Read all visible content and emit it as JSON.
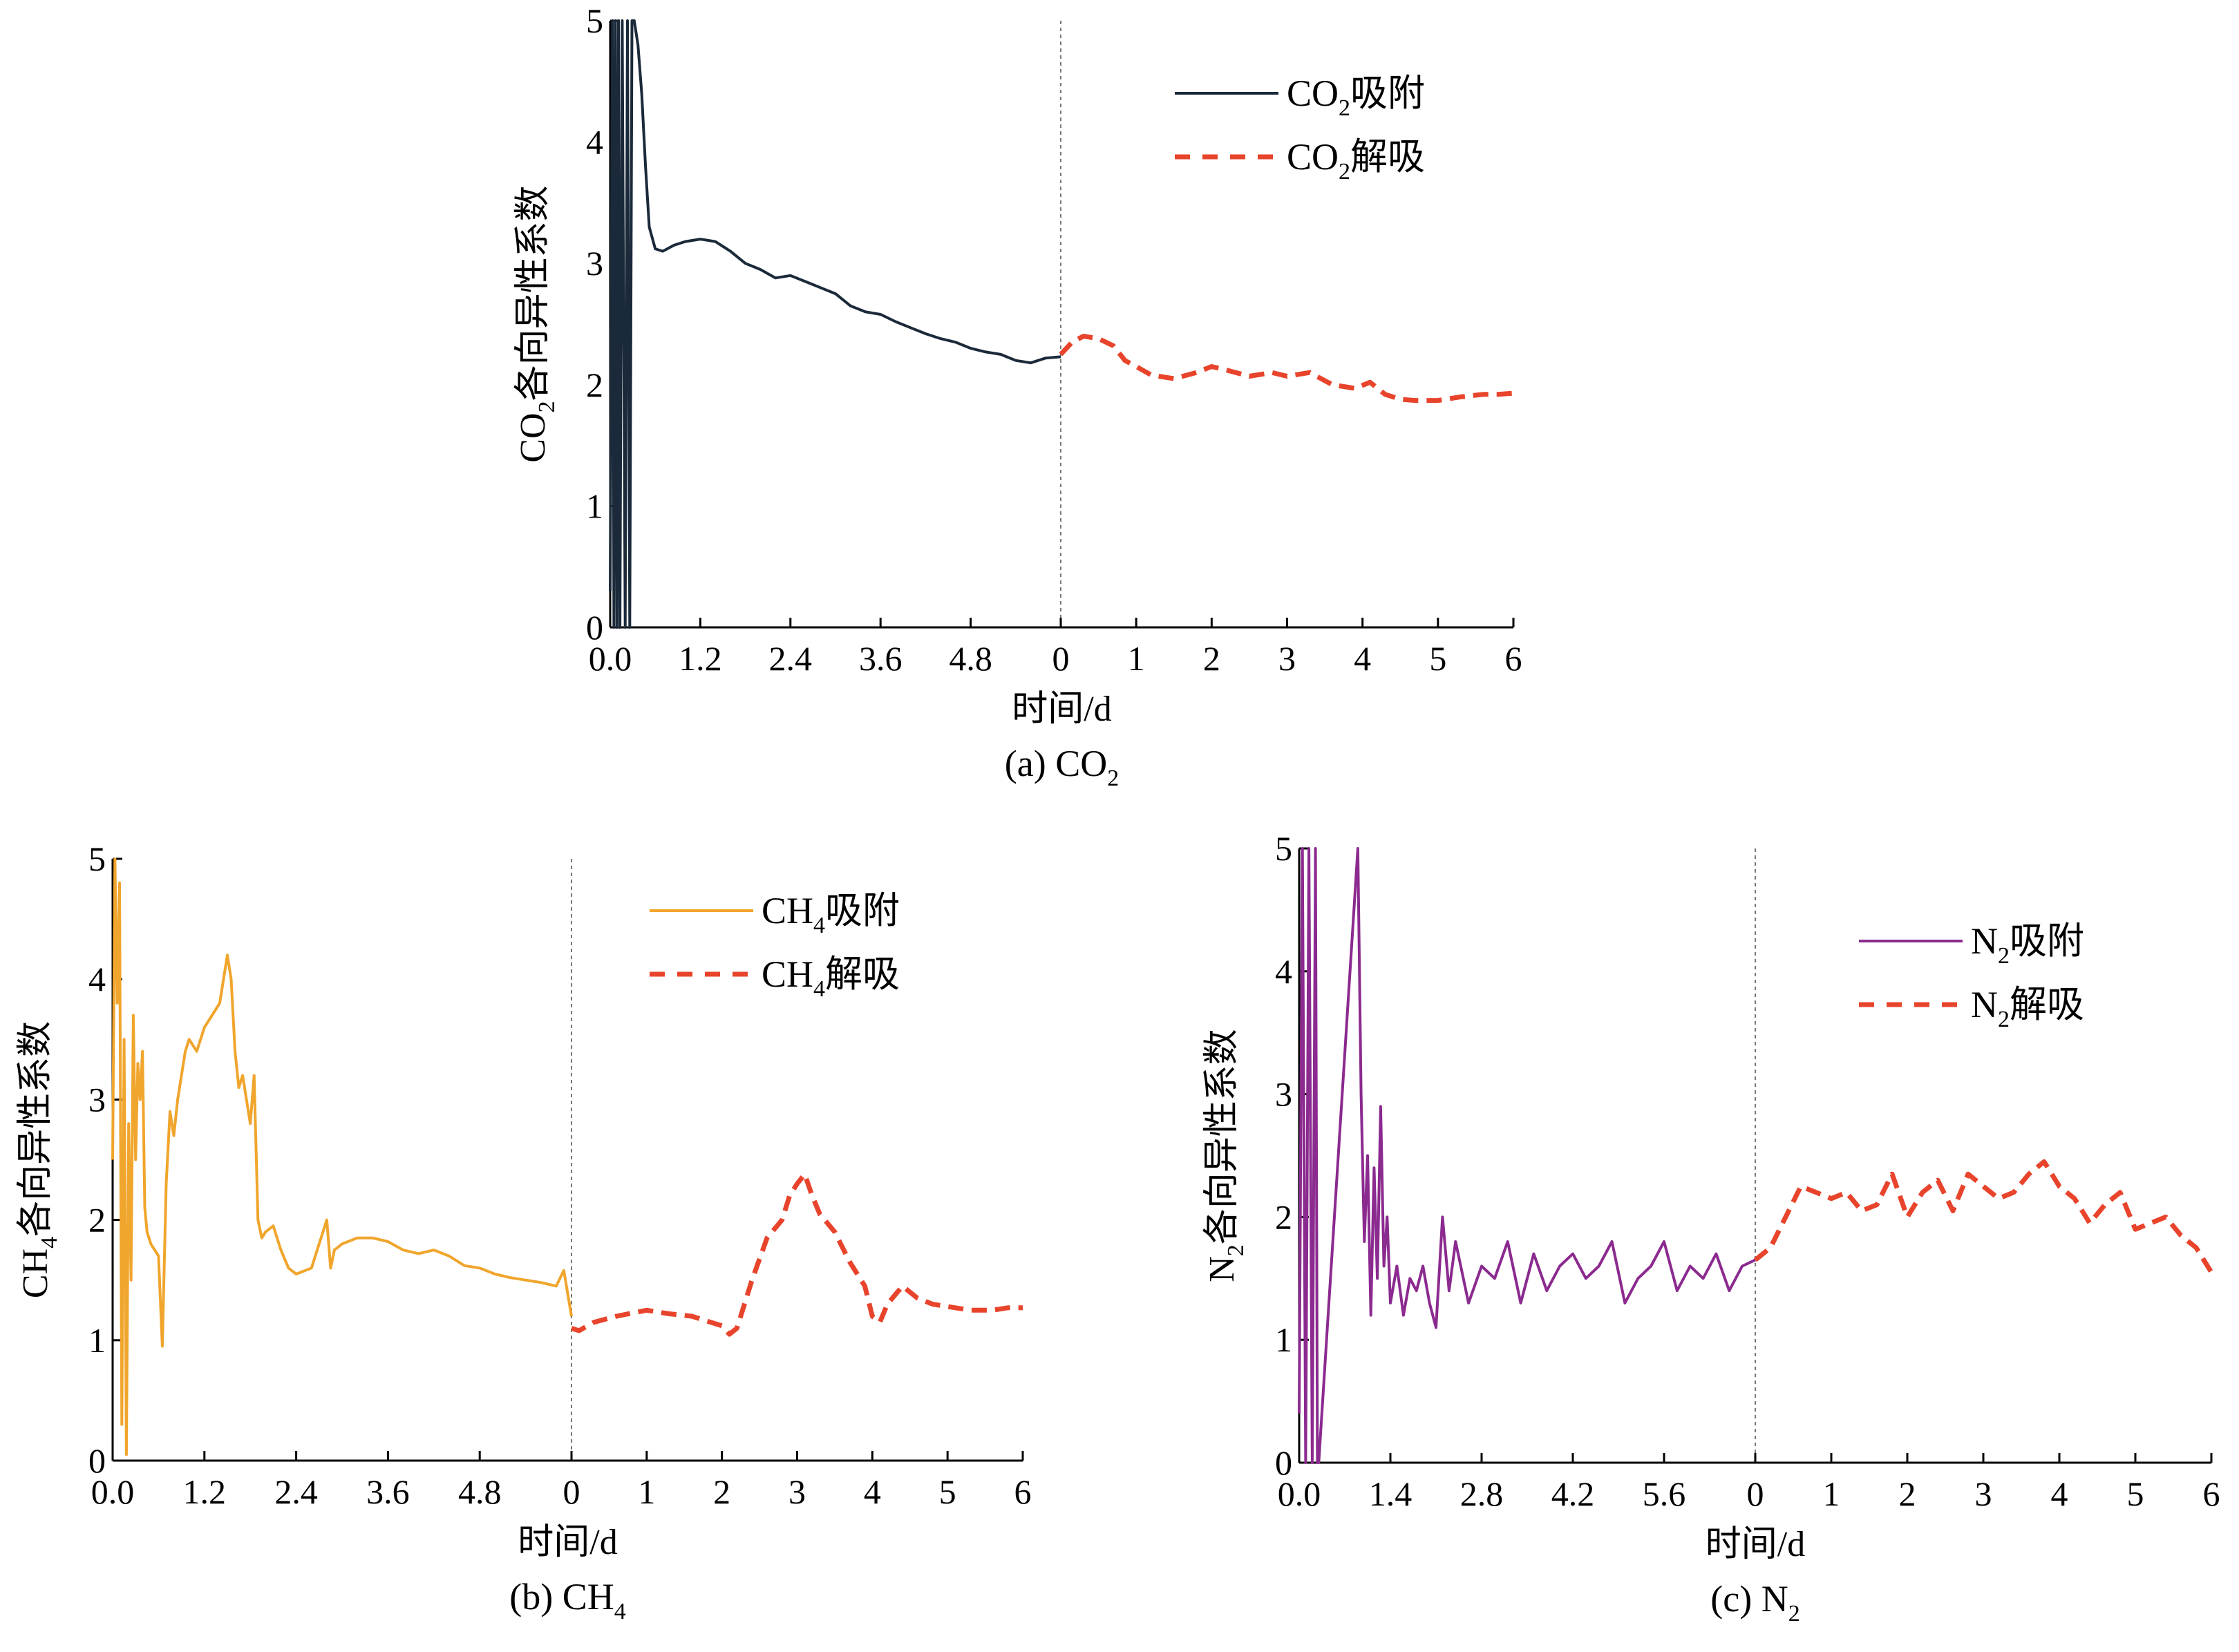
{
  "chart_data": [
    {
      "type": "line",
      "caption": "(a) CO",
      "caption_sub": "2",
      "ylabel": "CO",
      "ylabel_sub": "2",
      "ylabel_rest": "各向异性系数",
      "xlabel": "时间/d",
      "ylim": [
        0,
        5
      ],
      "yticks": [
        "0",
        "1",
        "2",
        "3",
        "4",
        "5"
      ],
      "adsorption_xlim": [
        0,
        6
      ],
      "adsorption_ticks": [
        "0.0",
        "1.2",
        "2.4",
        "3.6",
        "4.8"
      ],
      "adsorption_tick_values": [
        0,
        1.2,
        2.4,
        3.6,
        4.8
      ],
      "desorption_xlim": [
        0,
        6
      ],
      "desorption_ticks": [
        "0",
        "1",
        "2",
        "3",
        "4",
        "5",
        "6"
      ],
      "desorption_tick_values": [
        0,
        1,
        2,
        3,
        4,
        5,
        6
      ],
      "legend_placement": "top-right",
      "series": [
        {
          "name": "CO₂吸附",
          "legend_main": "CO",
          "legend_sub": "2",
          "legend_rest": "吸附",
          "phase": "adsorption",
          "color": "#1b2a3a",
          "style": "solid",
          "x": [
            0.0,
            0.03,
            0.05,
            0.07,
            0.09,
            0.11,
            0.13,
            0.16,
            0.2,
            0.23,
            0.26,
            0.29,
            0.32,
            0.37,
            0.42,
            0.47,
            0.52,
            0.6,
            0.7,
            0.85,
            1.0,
            1.2,
            1.4,
            1.6,
            1.8,
            2.0,
            2.2,
            2.4,
            2.6,
            2.8,
            3.0,
            3.2,
            3.4,
            3.6,
            3.8,
            4.0,
            4.2,
            4.4,
            4.6,
            4.8,
            5.0,
            5.2,
            5.4,
            5.6,
            5.8,
            6.0
          ],
          "y": [
            0.3,
            5.0,
            0.0,
            5.0,
            0.0,
            5.0,
            0.0,
            5.0,
            0.0,
            5.0,
            0.0,
            5.0,
            5.0,
            4.8,
            4.4,
            3.8,
            3.3,
            3.12,
            3.1,
            3.15,
            3.18,
            3.2,
            3.18,
            3.1,
            3.0,
            2.95,
            2.88,
            2.9,
            2.85,
            2.8,
            2.75,
            2.65,
            2.6,
            2.58,
            2.52,
            2.47,
            2.42,
            2.38,
            2.35,
            2.3,
            2.27,
            2.25,
            2.2,
            2.18,
            2.22,
            2.23
          ]
        },
        {
          "name": "CO₂解吸",
          "legend_main": "CO",
          "legend_sub": "2",
          "legend_rest": "解吸",
          "phase": "desorption",
          "color": "#e8442c",
          "style": "dashed",
          "x": [
            0.0,
            0.15,
            0.3,
            0.5,
            0.7,
            0.85,
            1.0,
            1.2,
            1.5,
            1.8,
            2.0,
            2.2,
            2.5,
            2.8,
            3.0,
            3.3,
            3.6,
            3.9,
            4.1,
            4.3,
            4.5,
            4.7,
            5.0,
            5.3,
            5.6,
            5.8,
            6.0
          ],
          "y": [
            2.25,
            2.35,
            2.4,
            2.38,
            2.32,
            2.2,
            2.15,
            2.08,
            2.05,
            2.1,
            2.15,
            2.12,
            2.07,
            2.1,
            2.07,
            2.1,
            2.0,
            1.97,
            2.02,
            1.92,
            1.88,
            1.87,
            1.87,
            1.9,
            1.92,
            1.92,
            1.93
          ]
        }
      ]
    },
    {
      "type": "line",
      "caption": "(b) CH",
      "caption_sub": "4",
      "ylabel": "CH",
      "ylabel_sub": "4",
      "ylabel_rest": "各向异性系数",
      "xlabel": "时间/d",
      "ylim": [
        0,
        5
      ],
      "yticks": [
        "0",
        "1",
        "2",
        "3",
        "4",
        "5"
      ],
      "adsorption_xlim": [
        0,
        6
      ],
      "adsorption_ticks": [
        "0.0",
        "1.2",
        "2.4",
        "3.6",
        "4.8"
      ],
      "adsorption_tick_values": [
        0,
        1.2,
        2.4,
        3.6,
        4.8
      ],
      "desorption_xlim": [
        0,
        6
      ],
      "desorption_ticks": [
        "0",
        "1",
        "2",
        "3",
        "4",
        "5",
        "6"
      ],
      "desorption_tick_values": [
        0,
        1,
        2,
        3,
        4,
        5,
        6
      ],
      "legend_placement": "top-right",
      "series": [
        {
          "name": "CH₄吸附",
          "legend_main": "CH",
          "legend_sub": "4",
          "legend_rest": "吸附",
          "phase": "adsorption",
          "color": "#f0a52c",
          "style": "solid",
          "x": [
            0.0,
            0.03,
            0.06,
            0.09,
            0.12,
            0.15,
            0.18,
            0.21,
            0.24,
            0.27,
            0.3,
            0.33,
            0.36,
            0.39,
            0.42,
            0.45,
            0.5,
            0.55,
            0.6,
            0.65,
            0.7,
            0.75,
            0.8,
            0.85,
            0.9,
            0.95,
            1.0,
            1.1,
            1.2,
            1.3,
            1.4,
            1.5,
            1.55,
            1.6,
            1.65,
            1.7,
            1.8,
            1.85,
            1.9,
            1.95,
            2.0,
            2.1,
            2.2,
            2.3,
            2.4,
            2.6,
            2.8,
            2.85,
            2.9,
            3.0,
            3.2,
            3.4,
            3.6,
            3.8,
            4.0,
            4.2,
            4.4,
            4.6,
            4.8,
            5.0,
            5.2,
            5.4,
            5.6,
            5.8,
            5.9,
            6.0
          ],
          "y": [
            2.5,
            5.0,
            3.8,
            4.8,
            0.3,
            3.5,
            0.05,
            2.8,
            1.5,
            3.7,
            2.5,
            3.3,
            3.0,
            3.4,
            2.1,
            1.9,
            1.8,
            1.75,
            1.7,
            0.95,
            2.3,
            2.9,
            2.7,
            3.0,
            3.2,
            3.4,
            3.5,
            3.4,
            3.6,
            3.7,
            3.8,
            4.2,
            4.0,
            3.4,
            3.1,
            3.2,
            2.8,
            3.2,
            2.0,
            1.85,
            1.9,
            1.95,
            1.75,
            1.6,
            1.55,
            1.6,
            2.0,
            1.6,
            1.75,
            1.8,
            1.85,
            1.85,
            1.82,
            1.75,
            1.72,
            1.75,
            1.7,
            1.62,
            1.6,
            1.55,
            1.52,
            1.5,
            1.48,
            1.45,
            1.58,
            1.2
          ]
        },
        {
          "name": "CH₄解吸",
          "legend_main": "CH",
          "legend_sub": "4",
          "legend_rest": "解吸",
          "phase": "desorption",
          "color": "#e8442c",
          "style": "dashed",
          "x": [
            0.0,
            0.1,
            0.3,
            0.6,
            1.0,
            1.3,
            1.6,
            2.0,
            2.1,
            2.2,
            2.4,
            2.6,
            2.8,
            2.9,
            3.0,
            3.1,
            3.2,
            3.3,
            3.5,
            3.7,
            3.9,
            4.0,
            4.1,
            4.2,
            4.4,
            4.6,
            4.8,
            5.0,
            5.3,
            5.6,
            5.8,
            6.0
          ],
          "y": [
            1.1,
            1.08,
            1.15,
            1.2,
            1.25,
            1.22,
            1.2,
            1.12,
            1.05,
            1.1,
            1.5,
            1.85,
            2.0,
            2.2,
            2.3,
            2.38,
            2.2,
            2.05,
            1.9,
            1.65,
            1.45,
            1.2,
            1.15,
            1.3,
            1.45,
            1.35,
            1.3,
            1.28,
            1.25,
            1.25,
            1.27,
            1.27
          ]
        }
      ]
    },
    {
      "type": "line",
      "caption": "(c) N",
      "caption_sub": "2",
      "ylabel": "N",
      "ylabel_sub": "2",
      "ylabel_rest": "各向异性系数",
      "xlabel": "时间/d",
      "ylim": [
        0,
        5
      ],
      "yticks": [
        "0",
        "1",
        "2",
        "3",
        "4",
        "5"
      ],
      "adsorption_xlim": [
        0,
        7
      ],
      "adsorption_ticks": [
        "0.0",
        "1.4",
        "2.8",
        "4.2",
        "5.6"
      ],
      "adsorption_tick_values": [
        0,
        1.4,
        2.8,
        4.2,
        5.6
      ],
      "desorption_xlim": [
        0,
        6
      ],
      "desorption_ticks": [
        "0",
        "1",
        "2",
        "3",
        "4",
        "5",
        "6"
      ],
      "desorption_tick_values": [
        0,
        1,
        2,
        3,
        4,
        5,
        6
      ],
      "legend_placement": "top-right",
      "series": [
        {
          "name": "N₂吸附",
          "legend_main": "N",
          "legend_sub": "2",
          "legend_rest": "吸附",
          "phase": "adsorption",
          "color": "#8b2a8f",
          "style": "solid",
          "x": [
            0.0,
            0.05,
            0.1,
            0.15,
            0.2,
            0.25,
            0.28,
            0.3,
            0.9,
            0.95,
            1.0,
            1.05,
            1.1,
            1.15,
            1.2,
            1.25,
            1.3,
            1.35,
            1.4,
            1.5,
            1.6,
            1.7,
            1.8,
            1.9,
            2.0,
            2.1,
            2.2,
            2.3,
            2.4,
            2.6,
            2.8,
            3.0,
            3.2,
            3.4,
            3.6,
            3.8,
            4.0,
            4.2,
            4.4,
            4.6,
            4.8,
            5.0,
            5.2,
            5.4,
            5.6,
            5.8,
            6.0,
            6.2,
            6.4,
            6.6,
            6.8,
            7.0
          ],
          "y": [
            0.4,
            5.0,
            0.0,
            5.0,
            0.0,
            5.0,
            0.0,
            0.0,
            5.0,
            3.0,
            1.8,
            2.5,
            1.2,
            2.4,
            1.5,
            2.9,
            1.6,
            2.0,
            1.3,
            1.6,
            1.2,
            1.5,
            1.4,
            1.6,
            1.3,
            1.1,
            2.0,
            1.4,
            1.8,
            1.3,
            1.6,
            1.5,
            1.8,
            1.3,
            1.7,
            1.4,
            1.6,
            1.7,
            1.5,
            1.6,
            1.8,
            1.3,
            1.5,
            1.6,
            1.8,
            1.4,
            1.6,
            1.5,
            1.7,
            1.4,
            1.6,
            1.65
          ]
        },
        {
          "name": "N₂解吸",
          "legend_main": "N",
          "legend_sub": "2",
          "legend_rest": "解吸",
          "phase": "desorption",
          "color": "#e8442c",
          "style": "dashed",
          "x": [
            0.0,
            0.2,
            0.4,
            0.6,
            0.8,
            1.0,
            1.2,
            1.4,
            1.6,
            1.8,
            2.0,
            2.2,
            2.4,
            2.6,
            2.8,
            3.0,
            3.2,
            3.4,
            3.6,
            3.8,
            4.0,
            4.2,
            4.4,
            4.6,
            4.8,
            5.0,
            5.2,
            5.4,
            5.6,
            5.8,
            6.0
          ],
          "y": [
            1.65,
            1.75,
            2.0,
            2.25,
            2.2,
            2.15,
            2.2,
            2.05,
            2.1,
            2.35,
            2.0,
            2.2,
            2.3,
            2.05,
            2.35,
            2.25,
            2.15,
            2.2,
            2.35,
            2.45,
            2.25,
            2.15,
            1.95,
            2.1,
            2.2,
            1.9,
            1.95,
            2.0,
            1.85,
            1.75,
            1.55
          ]
        }
      ]
    }
  ]
}
